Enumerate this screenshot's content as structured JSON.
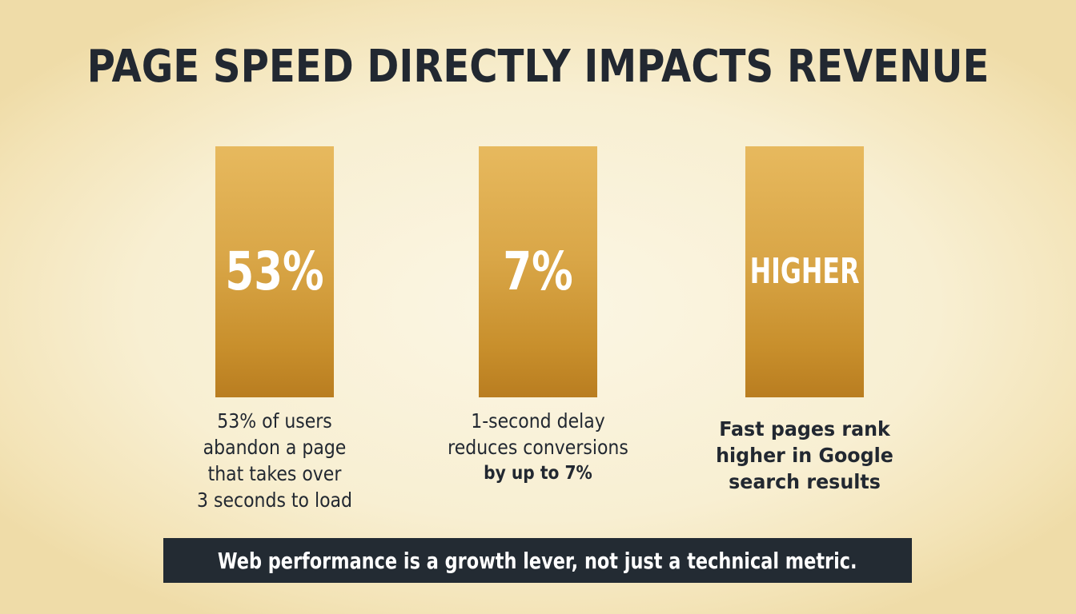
{
  "title": "PAGE SPEED DIRECTLY IMPACTS REVENUE",
  "stats": [
    {
      "value": "53%",
      "caption_lines": [
        "53% of users",
        "abandon a page",
        "that takes over",
        "3 seconds to load"
      ]
    },
    {
      "value": "7%",
      "caption_lines": [
        "1-second delay",
        "reduces conversions",
        "by up to 7%"
      ]
    },
    {
      "value": "HIGHER",
      "caption_lines": [
        "Fast pages rank",
        "higher in Google",
        "search results"
      ]
    }
  ],
  "banner": {
    "text": "Web performance is a growth lever, not just a technical metric."
  },
  "colors": {
    "bar_top": "#e7b95e",
    "bar_bottom": "#b97d20",
    "text_dark": "#222831",
    "banner_bg": "#232b33"
  }
}
